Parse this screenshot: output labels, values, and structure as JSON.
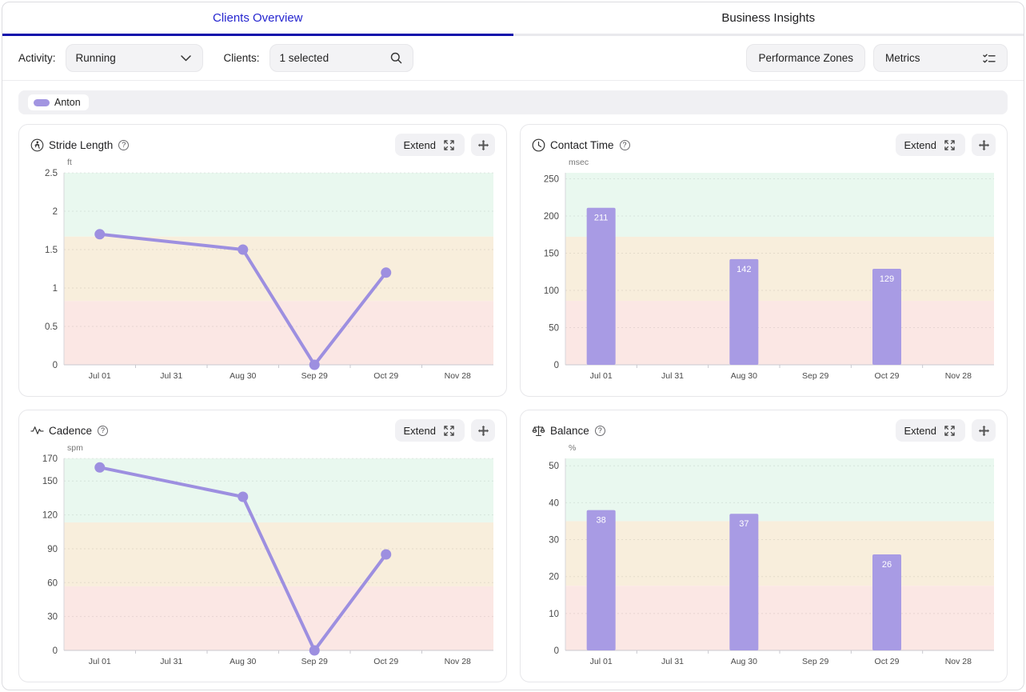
{
  "tabs": {
    "clients_overview": "Clients Overview",
    "business_insights": "Business Insights"
  },
  "filters": {
    "activity_label": "Activity:",
    "activity_value": "Running",
    "clients_label": "Clients:",
    "clients_value": "1 selected"
  },
  "actions": {
    "performance_zones": "Performance Zones",
    "metrics": "Metrics"
  },
  "legend": {
    "client_name": "Anton",
    "swatch_color": "#a295e1"
  },
  "ui": {
    "extend_label": "Extend"
  },
  "colors": {
    "series_line": "#9d8fe0",
    "series_bar": "#a89be4",
    "bar_label": "#ffffff",
    "zone_good": "#e9f8ef",
    "zone_ok": "#f8eedc",
    "zone_low": "#fbe7e4",
    "axis_label": "#4a4a4a",
    "unit_label": "#777777",
    "tab_active": "#2525cf"
  },
  "chart_data": [
    {
      "type": "line",
      "title": "Stride Length",
      "unit": "ft",
      "series_name": "Anton",
      "categories": [
        "Jul 01",
        "Jul 31",
        "Aug 30",
        "Sep 29",
        "Oct 29",
        "Nov 28"
      ],
      "values": [
        1.7,
        null,
        1.5,
        0,
        1.2,
        null
      ],
      "ylim": [
        0,
        2.5
      ],
      "yticks": [
        0,
        0.5,
        1,
        1.5,
        2,
        2.5
      ],
      "grid": true,
      "zones": [
        {
          "from": 1.67,
          "to": 2.5,
          "level": "good"
        },
        {
          "from": 0.83,
          "to": 1.67,
          "level": "ok"
        },
        {
          "from": 0,
          "to": 0.83,
          "level": "low"
        }
      ]
    },
    {
      "type": "bar",
      "title": "Contact Time",
      "unit": "msec",
      "series_name": "Anton",
      "categories": [
        "Jul 01",
        "Jul 31",
        "Aug 30",
        "Sep 29",
        "Oct 29",
        "Nov 28"
      ],
      "values": [
        211,
        null,
        142,
        null,
        129,
        null
      ],
      "ylim": [
        0,
        258
      ],
      "yticks": [
        0,
        50,
        100,
        150,
        200,
        250
      ],
      "grid": true,
      "zones": [
        {
          "from": 172,
          "to": 258,
          "level": "good"
        },
        {
          "from": 86,
          "to": 172,
          "level": "ok"
        },
        {
          "from": 0,
          "to": 86,
          "level": "low"
        }
      ]
    },
    {
      "type": "line",
      "title": "Cadence",
      "unit": "spm",
      "series_name": "Anton",
      "categories": [
        "Jul 01",
        "Jul 31",
        "Aug 30",
        "Sep 29",
        "Oct 29",
        "Nov 28"
      ],
      "values": [
        162,
        null,
        136,
        0,
        85,
        null
      ],
      "ylim": [
        0,
        170
      ],
      "yticks": [
        0,
        30,
        60,
        90,
        120,
        150,
        170
      ],
      "grid": true,
      "zones": [
        {
          "from": 113.3,
          "to": 170,
          "level": "good"
        },
        {
          "from": 56.7,
          "to": 113.3,
          "level": "ok"
        },
        {
          "from": 0,
          "to": 56.7,
          "level": "low"
        }
      ]
    },
    {
      "type": "bar",
      "title": "Balance",
      "unit": "%",
      "series_name": "Anton",
      "categories": [
        "Jul 01",
        "Jul 31",
        "Aug 30",
        "Sep 29",
        "Oct 29",
        "Nov 28"
      ],
      "values": [
        38,
        null,
        37,
        null,
        26,
        null
      ],
      "ylim": [
        0,
        52
      ],
      "yticks": [
        0,
        10,
        20,
        30,
        40,
        50
      ],
      "grid": true,
      "zones": [
        {
          "from": 35,
          "to": 52,
          "level": "good"
        },
        {
          "from": 17.5,
          "to": 35,
          "level": "ok"
        },
        {
          "from": 0,
          "to": 17.5,
          "level": "low"
        }
      ]
    }
  ]
}
